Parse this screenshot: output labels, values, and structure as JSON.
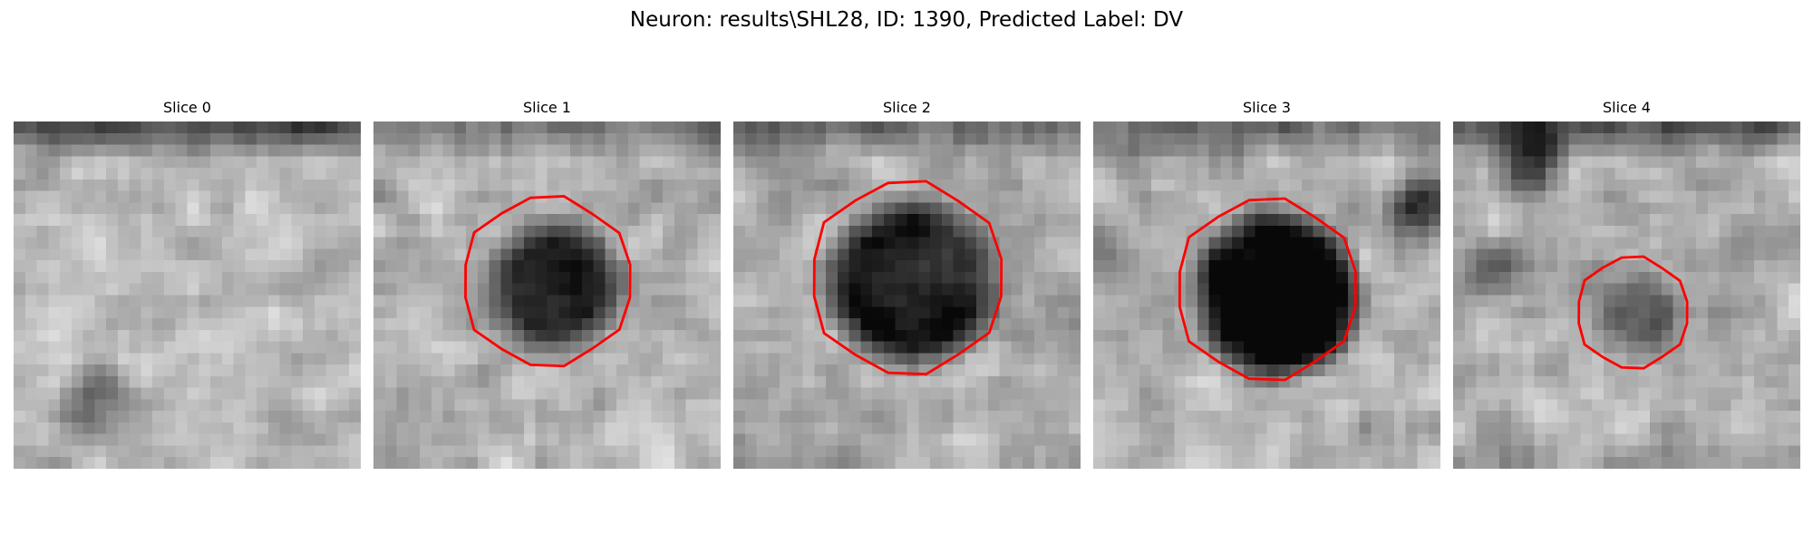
{
  "figure": {
    "title": "Neuron: results\\SHL28, ID: 1390, Predicted Label: DV",
    "contour_color": "#ff0000",
    "colormap": "grayscale"
  },
  "slices": [
    {
      "title": "Slice 0",
      "has_contour": false
    },
    {
      "title": "Slice 1",
      "has_contour": true
    },
    {
      "title": "Slice 2",
      "has_contour": true
    },
    {
      "title": "Slice 3",
      "has_contour": true
    },
    {
      "title": "Slice 4",
      "has_contour": true
    }
  ]
}
